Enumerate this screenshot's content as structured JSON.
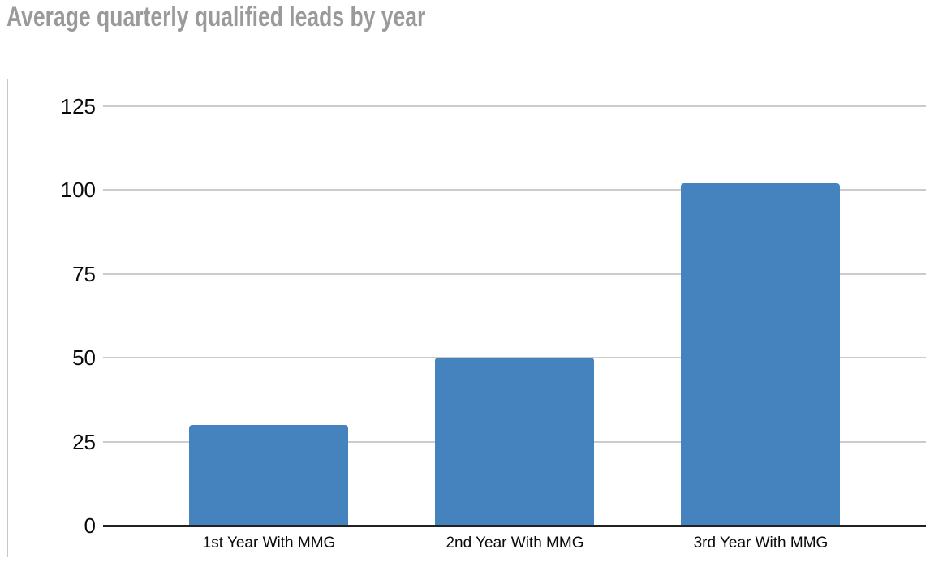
{
  "header": {
    "title": "Average quarterly qualified leads by year",
    "title_color": "#9a9a9a"
  },
  "chart_data": {
    "type": "bar",
    "title": "Average quarterly qualified leads by year",
    "categories": [
      "1st Year With MMG",
      "2nd Year With MMG",
      "3rd Year With MMG"
    ],
    "values": [
      30,
      50,
      102
    ],
    "xlabel": "",
    "ylabel": "",
    "ylim": [
      0,
      125
    ],
    "yticks": [
      0,
      25,
      50,
      75,
      100,
      125
    ],
    "grid": true,
    "legend_position": "none",
    "bar_color": "#4483bd",
    "gridline_color": "#cccccc",
    "baseline_color": "#212121",
    "axis_text_color": "#0a0a0a",
    "left_rule_color": "#c6c6c6"
  }
}
